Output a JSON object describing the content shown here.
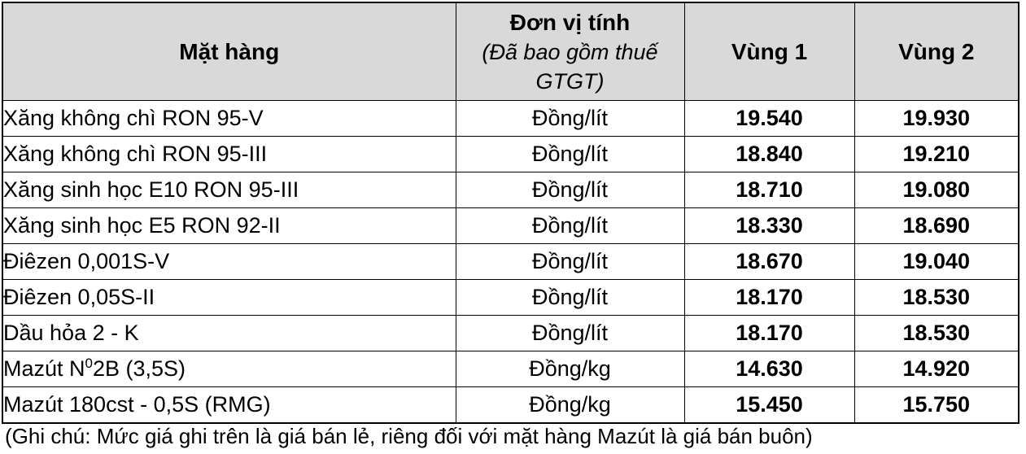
{
  "colors": {
    "header_bg": "#d9d9d9",
    "border": "#000000",
    "background": "#ffffff",
    "text": "#000000"
  },
  "table": {
    "headers": {
      "product": "Mặt hàng",
      "unit_title": "Đơn vị tính",
      "unit_note_line1": "(Đã bao gồm thuế",
      "unit_note_line2": "GTGT)",
      "region1": "Vùng 1",
      "region2": "Vùng 2"
    },
    "rows": [
      {
        "product": "Xăng không chì RON 95-V",
        "unit": "Đồng/lít",
        "region1": "19.540",
        "region2": "19.930"
      },
      {
        "product": "Xăng không chì RON 95-III",
        "unit": "Đồng/lít",
        "region1": "18.840",
        "region2": "19.210"
      },
      {
        "product": "Xăng sinh học E10 RON 95-III",
        "unit": "Đồng/lít",
        "region1": "18.710",
        "region2": "19.080"
      },
      {
        "product": "Xăng sinh học E5 RON 92-II",
        "unit": "Đồng/lít",
        "region1": "18.330",
        "region2": "18.690"
      },
      {
        "product": "Điêzen 0,001S-V",
        "unit": "Đồng/lít",
        "region1": "18.670",
        "region2": "19.040"
      },
      {
        "product": "Điêzen 0,05S-II",
        "unit": "Đồng/lít",
        "region1": "18.170",
        "region2": "18.530"
      },
      {
        "product": "Dầu hỏa 2 - K",
        "unit": "Đồng/lít",
        "region1": "18.170",
        "region2": "18.530"
      },
      {
        "product_prefix": "Mazút N",
        "product_sup": "0",
        "product_suffix": "2B (3,5S)",
        "unit": "Đồng/kg",
        "region1": "14.630",
        "region2": "14.920"
      },
      {
        "product": "Mazút 180cst - 0,5S (RMG)",
        "unit": "Đồng/kg",
        "region1": "15.450",
        "region2": "15.750"
      }
    ]
  },
  "note": "(Ghi chú: Mức giá ghi trên là giá bán lẻ, riêng đối với mặt hàng Mazút là giá bán buôn)"
}
